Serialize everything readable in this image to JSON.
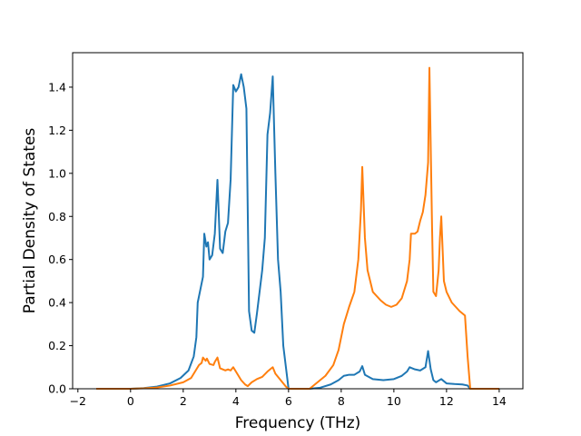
{
  "chart_data": {
    "type": "line",
    "title": "",
    "xlabel": "Frequency (THz)",
    "ylabel": "Partial Density of States",
    "xlim": [
      -2.2,
      14.9
    ],
    "ylim": [
      0.0,
      1.56
    ],
    "xticks": [
      -2,
      0,
      2,
      4,
      6,
      8,
      10,
      12,
      14
    ],
    "yticks": [
      0.0,
      0.2,
      0.4,
      0.6,
      0.8,
      1.0,
      1.2,
      1.4
    ],
    "xtick_labels": [
      "−2",
      "0",
      "2",
      "4",
      "6",
      "8",
      "10",
      "12",
      "14"
    ],
    "ytick_labels": [
      "0.0",
      "0.2",
      "0.4",
      "0.6",
      "0.8",
      "1.0",
      "1.2",
      "1.4"
    ],
    "grid": false,
    "legend": "none",
    "series": [
      {
        "color": "#1f77b4",
        "points": [
          [
            -1.3,
            0.0
          ],
          [
            0.0,
            0.0
          ],
          [
            0.5,
            0.003
          ],
          [
            1.0,
            0.01
          ],
          [
            1.5,
            0.025
          ],
          [
            1.9,
            0.05
          ],
          [
            2.2,
            0.085
          ],
          [
            2.4,
            0.15
          ],
          [
            2.5,
            0.24
          ],
          [
            2.55,
            0.4
          ],
          [
            2.65,
            0.46
          ],
          [
            2.75,
            0.52
          ],
          [
            2.8,
            0.72
          ],
          [
            2.88,
            0.66
          ],
          [
            2.94,
            0.68
          ],
          [
            3.0,
            0.6
          ],
          [
            3.1,
            0.62
          ],
          [
            3.2,
            0.72
          ],
          [
            3.3,
            0.97
          ],
          [
            3.4,
            0.65
          ],
          [
            3.5,
            0.63
          ],
          [
            3.6,
            0.73
          ],
          [
            3.7,
            0.77
          ],
          [
            3.8,
            0.97
          ],
          [
            3.9,
            1.41
          ],
          [
            4.0,
            1.38
          ],
          [
            4.1,
            1.4
          ],
          [
            4.2,
            1.46
          ],
          [
            4.3,
            1.4
          ],
          [
            4.4,
            1.3
          ],
          [
            4.5,
            0.36
          ],
          [
            4.6,
            0.27
          ],
          [
            4.7,
            0.26
          ],
          [
            4.8,
            0.35
          ],
          [
            5.0,
            0.55
          ],
          [
            5.1,
            0.7
          ],
          [
            5.2,
            1.18
          ],
          [
            5.3,
            1.28
          ],
          [
            5.4,
            1.45
          ],
          [
            5.5,
            1.0
          ],
          [
            5.6,
            0.6
          ],
          [
            5.7,
            0.45
          ],
          [
            5.8,
            0.2
          ],
          [
            6.0,
            0.0
          ],
          [
            6.8,
            0.0
          ],
          [
            7.2,
            0.005
          ],
          [
            7.6,
            0.02
          ],
          [
            7.9,
            0.04
          ],
          [
            8.1,
            0.06
          ],
          [
            8.3,
            0.065
          ],
          [
            8.5,
            0.065
          ],
          [
            8.7,
            0.08
          ],
          [
            8.8,
            0.105
          ],
          [
            8.9,
            0.065
          ],
          [
            9.2,
            0.045
          ],
          [
            9.6,
            0.04
          ],
          [
            10.0,
            0.045
          ],
          [
            10.3,
            0.06
          ],
          [
            10.5,
            0.08
          ],
          [
            10.6,
            0.1
          ],
          [
            10.8,
            0.09
          ],
          [
            11.0,
            0.085
          ],
          [
            11.2,
            0.1
          ],
          [
            11.3,
            0.175
          ],
          [
            11.4,
            0.09
          ],
          [
            11.5,
            0.04
          ],
          [
            11.6,
            0.03
          ],
          [
            11.8,
            0.045
          ],
          [
            12.0,
            0.025
          ],
          [
            12.3,
            0.022
          ],
          [
            12.6,
            0.02
          ],
          [
            12.8,
            0.015
          ],
          [
            12.9,
            0.0
          ],
          [
            14.0,
            0.0
          ]
        ]
      },
      {
        "color": "#ff7f0e",
        "points": [
          [
            -1.3,
            0.0
          ],
          [
            0.0,
            0.0
          ],
          [
            0.5,
            0.002
          ],
          [
            1.0,
            0.006
          ],
          [
            1.5,
            0.015
          ],
          [
            2.0,
            0.03
          ],
          [
            2.3,
            0.05
          ],
          [
            2.5,
            0.09
          ],
          [
            2.6,
            0.11
          ],
          [
            2.7,
            0.12
          ],
          [
            2.75,
            0.145
          ],
          [
            2.85,
            0.13
          ],
          [
            2.9,
            0.14
          ],
          [
            3.0,
            0.115
          ],
          [
            3.15,
            0.11
          ],
          [
            3.2,
            0.125
          ],
          [
            3.3,
            0.145
          ],
          [
            3.4,
            0.095
          ],
          [
            3.6,
            0.085
          ],
          [
            3.7,
            0.09
          ],
          [
            3.8,
            0.085
          ],
          [
            3.9,
            0.1
          ],
          [
            4.0,
            0.08
          ],
          [
            4.2,
            0.04
          ],
          [
            4.35,
            0.02
          ],
          [
            4.45,
            0.012
          ],
          [
            4.6,
            0.03
          ],
          [
            4.8,
            0.045
          ],
          [
            5.0,
            0.055
          ],
          [
            5.2,
            0.08
          ],
          [
            5.3,
            0.09
          ],
          [
            5.4,
            0.1
          ],
          [
            5.5,
            0.07
          ],
          [
            5.7,
            0.04
          ],
          [
            5.9,
            0.01
          ],
          [
            6.0,
            0.0
          ],
          [
            6.8,
            0.0
          ],
          [
            7.1,
            0.03
          ],
          [
            7.4,
            0.06
          ],
          [
            7.7,
            0.11
          ],
          [
            7.9,
            0.18
          ],
          [
            8.1,
            0.3
          ],
          [
            8.3,
            0.38
          ],
          [
            8.5,
            0.45
          ],
          [
            8.65,
            0.6
          ],
          [
            8.75,
            0.83
          ],
          [
            8.8,
            1.03
          ],
          [
            8.9,
            0.7
          ],
          [
            9.0,
            0.55
          ],
          [
            9.2,
            0.45
          ],
          [
            9.5,
            0.41
          ],
          [
            9.7,
            0.39
          ],
          [
            9.9,
            0.38
          ],
          [
            10.1,
            0.39
          ],
          [
            10.3,
            0.42
          ],
          [
            10.5,
            0.5
          ],
          [
            10.6,
            0.6
          ],
          [
            10.65,
            0.72
          ],
          [
            10.8,
            0.72
          ],
          [
            10.9,
            0.73
          ],
          [
            11.0,
            0.78
          ],
          [
            11.1,
            0.82
          ],
          [
            11.2,
            0.9
          ],
          [
            11.3,
            1.05
          ],
          [
            11.35,
            1.49
          ],
          [
            11.45,
            0.75
          ],
          [
            11.5,
            0.45
          ],
          [
            11.6,
            0.43
          ],
          [
            11.7,
            0.55
          ],
          [
            11.75,
            0.7
          ],
          [
            11.8,
            0.8
          ],
          [
            11.9,
            0.5
          ],
          [
            12.0,
            0.45
          ],
          [
            12.2,
            0.4
          ],
          [
            12.5,
            0.36
          ],
          [
            12.7,
            0.34
          ],
          [
            12.8,
            0.15
          ],
          [
            12.9,
            0.0
          ],
          [
            14.0,
            0.0
          ]
        ]
      }
    ]
  }
}
